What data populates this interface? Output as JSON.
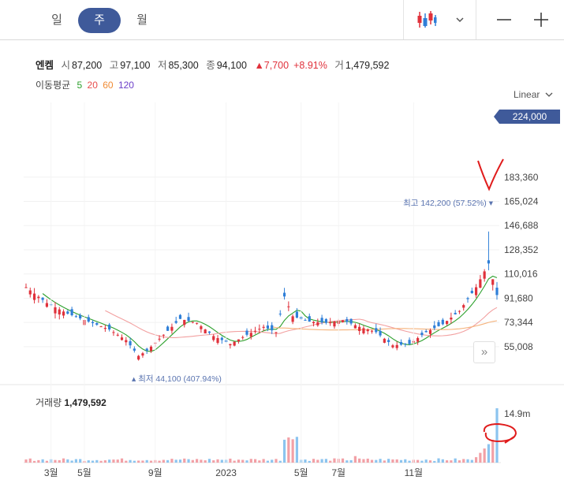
{
  "tabs": [
    {
      "label": "일",
      "active": false
    },
    {
      "label": "주",
      "active": true
    },
    {
      "label": "월",
      "active": false
    }
  ],
  "toolbar": {
    "chart_type_icon": "candlestick-icon",
    "dropdown_icon": "chevron-down-icon",
    "zoom_out_icon": "minus-icon",
    "zoom_in_icon": "plus-icon"
  },
  "info": {
    "name": "엔켐",
    "open_label": "시",
    "open": "87,200",
    "high_label": "고",
    "high": "97,100",
    "low_label": "저",
    "low": "85,300",
    "close_label": "종",
    "close": "94,100",
    "change": "▲7,700",
    "change_pct": "+8.91%",
    "volume_label": "거",
    "volume": "1,479,592"
  },
  "moving_average": {
    "label": "이동평균",
    "periods": [
      {
        "label": "5",
        "color": "#2ca02c"
      },
      {
        "label": "20",
        "color": "#e84c4c"
      },
      {
        "label": "60",
        "color": "#f08b35"
      },
      {
        "label": "120",
        "color": "#6c3fc9"
      }
    ]
  },
  "scale_label": "Linear",
  "current_price_label": "224,000",
  "scroll_button": "»",
  "volume_panel": {
    "label": "거래량",
    "value": "1,479,592",
    "max_label": "14.9m"
  },
  "colors": {
    "up": "#e0313b",
    "down": "#2f7fd8",
    "accent": "#3f5a9a",
    "vol_up": "#f2a0a6",
    "vol_down": "#8cc4ef"
  },
  "chart_data": {
    "type": "candlestick",
    "y_ticks": [
      "183,360",
      "165,024",
      "146,688",
      "128,352",
      "110,016",
      "91,680",
      "73,344",
      "55,008"
    ],
    "y_tick_values": [
      183360,
      165024,
      146688,
      128352,
      110016,
      91680,
      73344,
      55008
    ],
    "ylim": [
      40000,
      228000
    ],
    "x_ticks": [
      {
        "label": "3월",
        "index": 6
      },
      {
        "label": "5월",
        "index": 14
      },
      {
        "label": "9월",
        "index": 31
      },
      {
        "label": "2023",
        "index": 48
      },
      {
        "label": "5월",
        "index": 66
      },
      {
        "label": "7월",
        "index": 75
      },
      {
        "label": "11월",
        "index": 93
      }
    ],
    "high_annotation": {
      "label": "최고",
      "value": "142,200",
      "pct": "(57.52%)",
      "price": 142200
    },
    "low_annotation": {
      "label": "최저",
      "value": "44,100",
      "pct": "(407.94%)",
      "price": 44100
    },
    "volume_max": 14900000
  },
  "annotations": {
    "arrow_color": "#e01c1c"
  }
}
